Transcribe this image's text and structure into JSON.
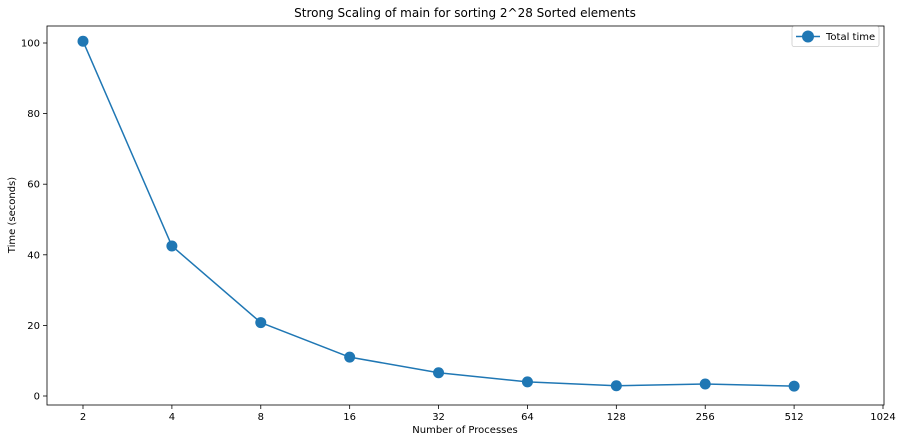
{
  "chart_data": {
    "type": "line",
    "title": "Strong Scaling of main for sorting 2^28 Sorted elements",
    "xlabel": "Number of Processes",
    "ylabel": "Time (seconds)",
    "x_scale": "log2",
    "x_ticks": [
      2,
      4,
      8,
      16,
      32,
      64,
      128,
      256,
      512,
      1024
    ],
    "y_ticks": [
      0,
      20,
      40,
      60,
      80,
      100
    ],
    "ylim": [
      -1.5,
      105
    ],
    "grid": false,
    "legend_position": "top-right",
    "series": [
      {
        "name": "Total time",
        "color": "#1f77b4",
        "marker": "circle",
        "x": [
          2,
          4,
          8,
          16,
          32,
          64,
          128,
          256,
          512
        ],
        "y": [
          100.5,
          42.5,
          20.8,
          11.0,
          6.6,
          4.0,
          2.9,
          3.4,
          2.8
        ]
      }
    ]
  }
}
